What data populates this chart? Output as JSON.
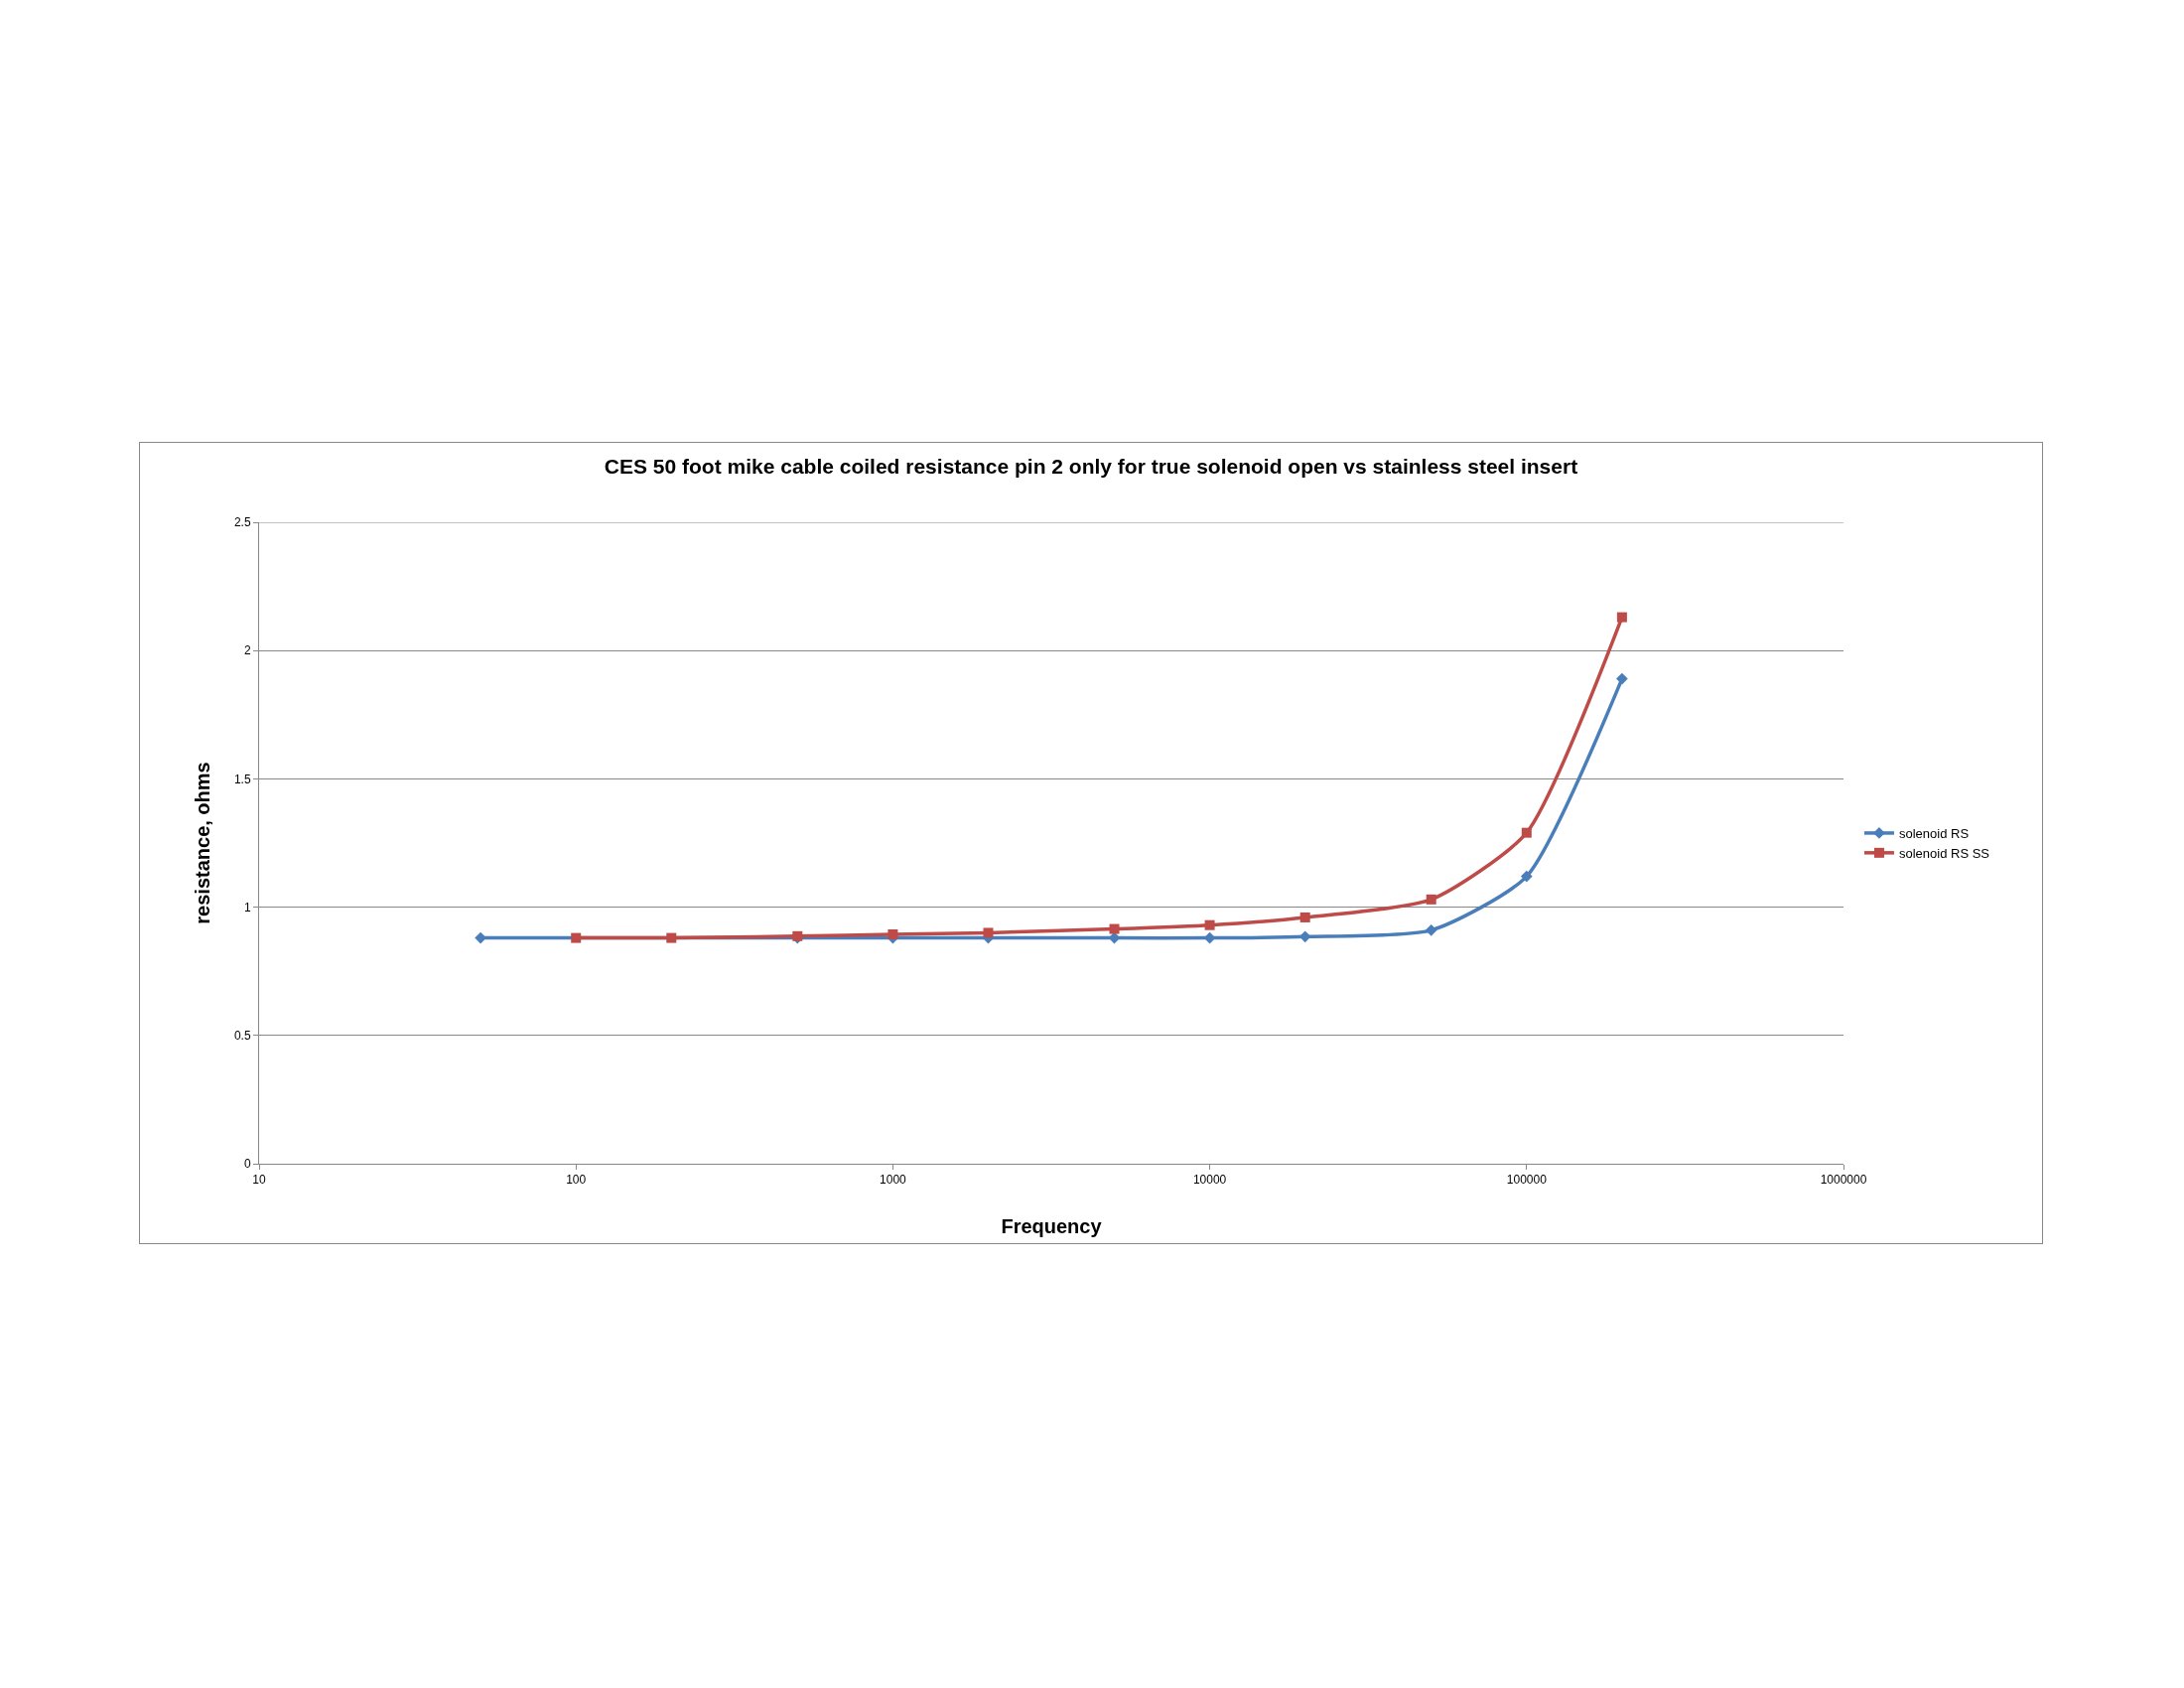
{
  "chart_data": {
    "type": "line",
    "title": "CES 50 foot mike cable coiled resistance pin 2 only for true solenoid open vs stainless steel insert",
    "xlabel": "Frequency",
    "ylabel": "resistance, ohms",
    "log": "x",
    "xlim": [
      10,
      1000000
    ],
    "xticks": [
      10,
      100,
      1000,
      10000,
      100000,
      1000000
    ],
    "ylim": [
      0,
      2.5
    ],
    "yticks": [
      0,
      0.5,
      1,
      1.5,
      2,
      2.5
    ],
    "grid": "y",
    "legend": "right",
    "line_style": "solid",
    "series": [
      {
        "name": "solenoid RS",
        "color": "#4a7ebb",
        "marker": "diamond",
        "x": [
          50,
          100,
          200,
          500,
          1000,
          2000,
          5000,
          10000,
          20000,
          50000,
          100000,
          200000
        ],
        "values": [
          0.88,
          null,
          null,
          0.88,
          0.88,
          0.88,
          0.88,
          0.88,
          0.885,
          0.91,
          1.12,
          1.89
        ]
      },
      {
        "name": "solenoid RS SS",
        "color": "#be4b48",
        "marker": "square",
        "x": [
          100,
          200,
          500,
          1000,
          2000,
          5000,
          10000,
          20000,
          50000,
          100000,
          200000
        ],
        "values": [
          0.88,
          0.88,
          0.887,
          0.894,
          0.9,
          0.915,
          0.93,
          0.96,
          1.03,
          1.29,
          2.13
        ]
      }
    ]
  }
}
